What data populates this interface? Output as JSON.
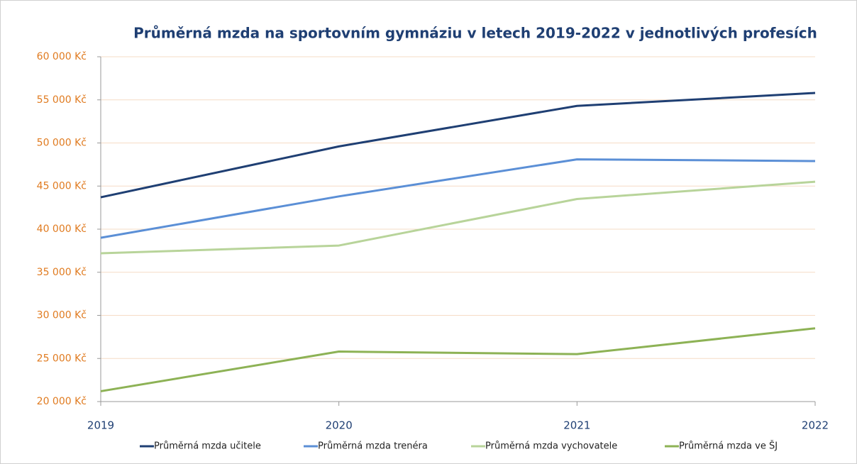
{
  "chart_data": {
    "type": "line",
    "title": "Průměrná mzda na sportovním gymnáziu v letech 2019-2022 v jednotlivých profesích",
    "categories": [
      "2019",
      "2020",
      "2021",
      "2022"
    ],
    "series": [
      {
        "name": "Průměrná mzda učitele",
        "color": "#1f3f73",
        "values": [
          43700,
          49600,
          54300,
          55800
        ]
      },
      {
        "name": "Průměrná mzda trenéra",
        "color": "#5b8fd6",
        "values": [
          39000,
          43800,
          48100,
          47900
        ]
      },
      {
        "name": "Průměrná mzda vychovatele",
        "color": "#b8d49a",
        "values": [
          37200,
          38100,
          43500,
          45500
        ]
      },
      {
        "name": "Průměrná mzda ve ŠJ",
        "color": "#8db255",
        "values": [
          21200,
          25800,
          25500,
          28500
        ]
      }
    ],
    "ylim": [
      20000,
      60000
    ],
    "yticks": [
      {
        "value": 20000,
        "label": "20 000 Kč"
      },
      {
        "value": 25000,
        "label": "25 000 Kč"
      },
      {
        "value": 30000,
        "label": "30 000 Kč"
      },
      {
        "value": 35000,
        "label": "35 000 Kč"
      },
      {
        "value": 40000,
        "label": "40 000 Kč"
      },
      {
        "value": 45000,
        "label": "45 000 Kč"
      },
      {
        "value": 50000,
        "label": "50 000 Kč"
      },
      {
        "value": 55000,
        "label": "55 000 Kč"
      },
      {
        "value": 60000,
        "label": "60 000 Kč"
      }
    ],
    "grid": true,
    "legend": "bottom"
  }
}
